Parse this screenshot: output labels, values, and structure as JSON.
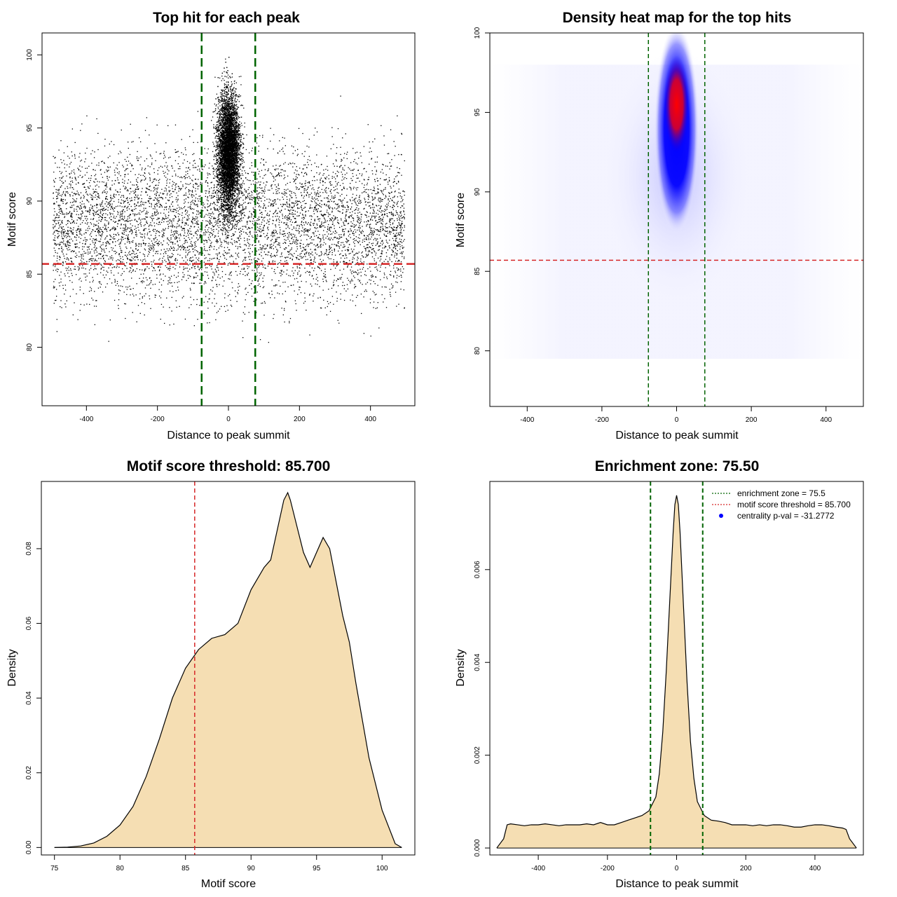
{
  "chart_data": [
    {
      "type": "scatter",
      "title": "Top hit for each peak",
      "xlabel": "Distance to peak summit",
      "ylabel": "Motif score",
      "xlim": [
        -525,
        525
      ],
      "ylim": [
        76,
        101.5
      ],
      "xticks": [
        -400,
        -200,
        0,
        200,
        400
      ],
      "yticks": [
        80,
        85,
        90,
        95,
        100
      ],
      "xtick_labels": [
        "-400",
        "-200",
        "0",
        "200",
        "400"
      ],
      "ytick_labels": [
        "80",
        "85",
        "90",
        "95",
        "100"
      ],
      "point_color": "#000000",
      "points_description": "dense cloud concentrated near 0 between 83 and 100",
      "vlines": [
        {
          "x": -75.5,
          "color": "#006400",
          "style": "dashed"
        },
        {
          "x": 75.5,
          "color": "#006400",
          "style": "dashed"
        }
      ],
      "hlines": [
        {
          "y": 85.7,
          "color": "#d62728",
          "style": "dashed"
        }
      ]
    },
    {
      "type": "heatmap",
      "title": "Density heat map for the top hits",
      "xlabel": "Distance to peak summit",
      "ylabel": "Motif score",
      "xlim": [
        -500,
        500
      ],
      "ylim": [
        76.5,
        100
      ],
      "xticks": [
        -400,
        -200,
        0,
        200,
        400
      ],
      "yticks": [
        80,
        85,
        90,
        95,
        100
      ],
      "xtick_labels": [
        "-400",
        "-200",
        "0",
        "200",
        "400"
      ],
      "ytick_labels": [
        "80",
        "85",
        "90",
        "95",
        "100"
      ],
      "color_low": "#ffffff",
      "color_mid": "#0000ff",
      "color_high": "#ff0000",
      "hotspot": {
        "x": 0,
        "y": 95.5
      },
      "vlines": [
        {
          "x": -75.5,
          "color": "#006400",
          "style": "dashed"
        },
        {
          "x": 75.5,
          "color": "#006400",
          "style": "dashed"
        }
      ],
      "hlines": [
        {
          "y": 85.7,
          "color": "#d62728",
          "style": "dashed"
        }
      ]
    },
    {
      "type": "area",
      "title": "Motif score threshold: 85.700",
      "xlabel": "Motif score",
      "ylabel": "Density",
      "xlim": [
        74,
        102.5
      ],
      "ylim": [
        -0.002,
        0.098
      ],
      "xticks": [
        75,
        80,
        85,
        90,
        95,
        100
      ],
      "yticks": [
        0.0,
        0.02,
        0.04,
        0.06,
        0.08
      ],
      "xtick_labels": [
        "75",
        "80",
        "85",
        "90",
        "95",
        "100"
      ],
      "ytick_labels": [
        "0.00",
        "0.02",
        "0.04",
        "0.06",
        "0.08"
      ],
      "fill_color": "#f5deb3",
      "x": [
        75,
        76,
        77,
        78,
        79,
        80,
        81,
        82,
        83,
        84,
        85,
        86,
        87,
        88,
        89,
        90,
        90.5,
        91,
        91.5,
        92,
        92.5,
        92.8,
        93,
        93.5,
        94,
        94.5,
        95,
        95.5,
        96,
        96.5,
        97,
        97.5,
        98,
        99,
        100,
        101,
        101.5
      ],
      "y": [
        0.0,
        0.0001,
        0.0004,
        0.0012,
        0.003,
        0.006,
        0.011,
        0.019,
        0.029,
        0.04,
        0.048,
        0.053,
        0.056,
        0.057,
        0.06,
        0.069,
        0.072,
        0.075,
        0.077,
        0.085,
        0.093,
        0.095,
        0.093,
        0.086,
        0.079,
        0.075,
        0.079,
        0.083,
        0.08,
        0.071,
        0.062,
        0.055,
        0.044,
        0.024,
        0.01,
        0.001,
        0.0
      ],
      "vlines": [
        {
          "x": 85.7,
          "color": "#d62728",
          "style": "dashed"
        }
      ]
    },
    {
      "type": "area",
      "title": "Enrichment zone: 75.50",
      "xlabel": "Distance to peak summit",
      "ylabel": "Density",
      "xlim": [
        -540,
        540
      ],
      "ylim": [
        -0.00015,
        0.0079
      ],
      "xticks": [
        -400,
        -200,
        0,
        200,
        400
      ],
      "yticks": [
        0.0,
        0.002,
        0.004,
        0.006
      ],
      "xtick_labels": [
        "-400",
        "-200",
        "0",
        "200",
        "400"
      ],
      "ytick_labels": [
        "0.000",
        "0.002",
        "0.004",
        "0.006"
      ],
      "fill_color": "#f5deb3",
      "x": [
        -520,
        -500,
        -490,
        -480,
        -460,
        -440,
        -420,
        -400,
        -380,
        -360,
        -340,
        -320,
        -300,
        -280,
        -260,
        -240,
        -220,
        -200,
        -180,
        -160,
        -140,
        -120,
        -100,
        -80,
        -60,
        -50,
        -40,
        -30,
        -20,
        -10,
        -5,
        0,
        5,
        10,
        20,
        30,
        40,
        50,
        60,
        80,
        100,
        120,
        140,
        160,
        180,
        200,
        220,
        240,
        260,
        280,
        300,
        320,
        340,
        360,
        380,
        400,
        420,
        440,
        460,
        480,
        490,
        500,
        520
      ],
      "y": [
        0.0,
        0.0002,
        0.0005,
        0.00052,
        0.0005,
        0.00048,
        0.0005,
        0.0005,
        0.00052,
        0.0005,
        0.00048,
        0.0005,
        0.0005,
        0.0005,
        0.00052,
        0.0005,
        0.00055,
        0.0005,
        0.0005,
        0.00055,
        0.0006,
        0.00065,
        0.0007,
        0.0008,
        0.0011,
        0.0016,
        0.0025,
        0.0038,
        0.0053,
        0.0068,
        0.0074,
        0.0076,
        0.0074,
        0.0068,
        0.0052,
        0.0036,
        0.0023,
        0.0015,
        0.001,
        0.0007,
        0.0006,
        0.00058,
        0.00055,
        0.0005,
        0.0005,
        0.0005,
        0.00048,
        0.0005,
        0.00048,
        0.0005,
        0.0005,
        0.00048,
        0.00045,
        0.00045,
        0.00048,
        0.0005,
        0.0005,
        0.00048,
        0.00045,
        0.00043,
        0.0004,
        0.0002,
        0.0
      ],
      "vlines": [
        {
          "x": -75.5,
          "color": "#006400",
          "style": "dashed"
        },
        {
          "x": 75.5,
          "color": "#006400",
          "style": "dashed"
        }
      ],
      "legend": [
        {
          "label": "enrichment zone = 75.5",
          "color": "#006400",
          "marker": "dotted-line"
        },
        {
          "label": "motif score threshold = 85.700",
          "color": "#d62728",
          "marker": "dotted-line"
        },
        {
          "label": "centrality p-val = -31.2772",
          "color": "#0000ff",
          "marker": "point"
        }
      ],
      "legend_position": "top-right"
    }
  ]
}
